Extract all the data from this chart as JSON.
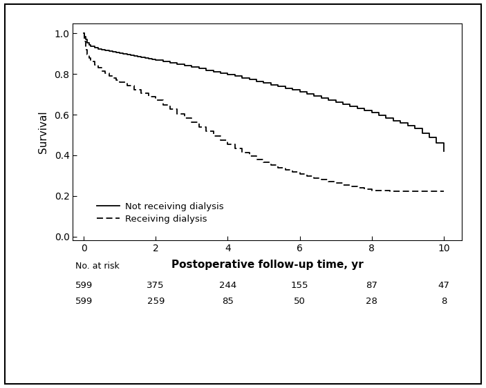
{
  "xlabel": "Postoperative follow-up time, yr",
  "ylabel": "Survival",
  "xlim": [
    -0.3,
    10.5
  ],
  "ylim": [
    -0.02,
    1.05
  ],
  "xticks": [
    0,
    2,
    4,
    6,
    8,
    10
  ],
  "yticks": [
    0.0,
    0.2,
    0.4,
    0.6,
    0.8,
    1.0
  ],
  "background_color": "#ffffff",
  "line_color": "#000000",
  "no_at_risk_times": [
    0,
    2,
    4,
    6,
    8,
    10
  ],
  "no_at_risk_label": "No. at risk",
  "no_at_risk_nodialysis": [
    599,
    375,
    244,
    155,
    87,
    47
  ],
  "no_at_risk_dialysis": [
    599,
    259,
    85,
    50,
    28,
    8
  ],
  "legend_labels": [
    "Not receiving dialysis",
    "Receiving dialysis"
  ],
  "nodialysis_x": [
    0.0,
    0.02,
    0.05,
    0.1,
    0.15,
    0.2,
    0.3,
    0.4,
    0.5,
    0.6,
    0.7,
    0.8,
    0.9,
    1.0,
    1.1,
    1.2,
    1.3,
    1.4,
    1.5,
    1.6,
    1.7,
    1.8,
    1.9,
    2.0,
    2.2,
    2.4,
    2.6,
    2.8,
    3.0,
    3.2,
    3.4,
    3.6,
    3.8,
    4.0,
    4.2,
    4.4,
    4.6,
    4.8,
    5.0,
    5.2,
    5.4,
    5.6,
    5.8,
    6.0,
    6.2,
    6.4,
    6.6,
    6.8,
    7.0,
    7.2,
    7.4,
    7.6,
    7.8,
    8.0,
    8.2,
    8.4,
    8.6,
    8.8,
    9.0,
    9.2,
    9.4,
    9.6,
    9.8,
    10.0
  ],
  "nodialysis_y": [
    1.0,
    0.985,
    0.97,
    0.955,
    0.945,
    0.938,
    0.93,
    0.924,
    0.92,
    0.916,
    0.912,
    0.909,
    0.906,
    0.903,
    0.899,
    0.895,
    0.891,
    0.888,
    0.885,
    0.882,
    0.879,
    0.876,
    0.873,
    0.87,
    0.863,
    0.856,
    0.849,
    0.842,
    0.835,
    0.827,
    0.819,
    0.812,
    0.805,
    0.798,
    0.789,
    0.781,
    0.773,
    0.765,
    0.757,
    0.748,
    0.739,
    0.731,
    0.722,
    0.714,
    0.703,
    0.693,
    0.683,
    0.673,
    0.663,
    0.652,
    0.641,
    0.631,
    0.62,
    0.61,
    0.597,
    0.584,
    0.571,
    0.558,
    0.545,
    0.532,
    0.51,
    0.488,
    0.46,
    0.42
  ],
  "dialysis_x": [
    0.0,
    0.02,
    0.05,
    0.1,
    0.15,
    0.2,
    0.3,
    0.4,
    0.5,
    0.6,
    0.7,
    0.8,
    0.9,
    1.0,
    1.2,
    1.4,
    1.6,
    1.8,
    2.0,
    2.2,
    2.4,
    2.6,
    2.8,
    3.0,
    3.2,
    3.4,
    3.6,
    3.8,
    4.0,
    4.2,
    4.4,
    4.6,
    4.8,
    5.0,
    5.2,
    5.4,
    5.6,
    5.8,
    6.0,
    6.2,
    6.4,
    6.6,
    6.8,
    7.0,
    7.2,
    7.4,
    7.6,
    7.8,
    8.0,
    8.5,
    9.0,
    9.5,
    10.0
  ],
  "dialysis_y": [
    1.0,
    0.96,
    0.92,
    0.895,
    0.878,
    0.862,
    0.845,
    0.83,
    0.815,
    0.803,
    0.791,
    0.78,
    0.77,
    0.76,
    0.742,
    0.724,
    0.706,
    0.688,
    0.67,
    0.648,
    0.626,
    0.605,
    0.584,
    0.563,
    0.54,
    0.517,
    0.495,
    0.474,
    0.453,
    0.433,
    0.414,
    0.396,
    0.38,
    0.365,
    0.351,
    0.338,
    0.327,
    0.317,
    0.308,
    0.298,
    0.289,
    0.28,
    0.272,
    0.264,
    0.255,
    0.247,
    0.24,
    0.233,
    0.226,
    0.224,
    0.222,
    0.222,
    0.222
  ]
}
